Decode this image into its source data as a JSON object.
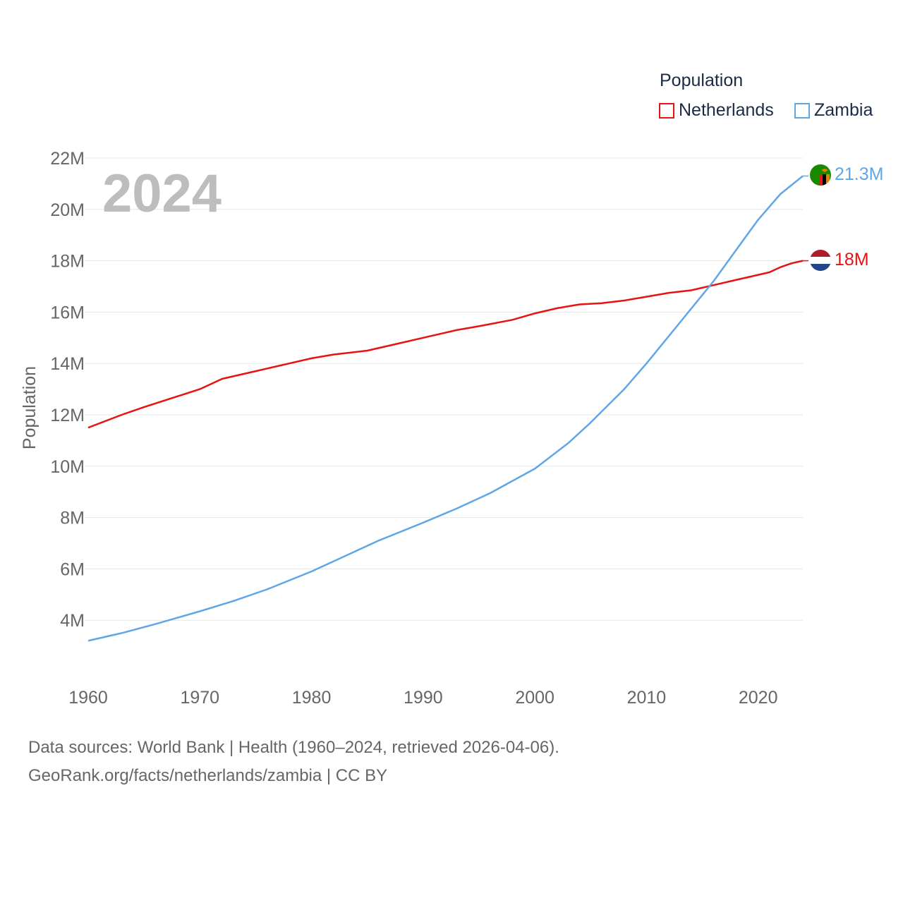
{
  "legend": {
    "title": "Population",
    "items": [
      {
        "label": "Netherlands",
        "color": "#e8130f"
      },
      {
        "label": "Zambia",
        "color": "#5fa6e6"
      }
    ]
  },
  "year_watermark": "2024",
  "source": {
    "line1": "Data sources: World Bank | Health (1960–2024, retrieved 2026-04-06).",
    "line2": "GeoRank.org/facts/netherlands/zambia | CC BY"
  },
  "chart_data": {
    "type": "line",
    "title": "Population",
    "xlabel": "",
    "ylabel": "Population",
    "xlim": [
      1960,
      2024
    ],
    "ylim": [
      2,
      22
    ],
    "x_ticks": [
      1960,
      1970,
      1980,
      1990,
      2000,
      2010,
      2020
    ],
    "y_ticks": [
      4,
      6,
      8,
      10,
      12,
      14,
      16,
      18,
      20,
      22
    ],
    "y_tick_labels": [
      "4M",
      "6M",
      "8M",
      "10M",
      "12M",
      "14M",
      "16M",
      "18M",
      "20M",
      "22M"
    ],
    "grid": true,
    "legend_position": "top-right",
    "series": [
      {
        "name": "Netherlands",
        "color": "#e8130f",
        "end_label": "18M",
        "flag": "netherlands-flag-icon",
        "points": [
          [
            1960,
            11.5
          ],
          [
            1963,
            12.0
          ],
          [
            1965,
            12.3
          ],
          [
            1970,
            13.0
          ],
          [
            1972,
            13.4
          ],
          [
            1975,
            13.7
          ],
          [
            1978,
            14.0
          ],
          [
            1980,
            14.2
          ],
          [
            1982,
            14.35
          ],
          [
            1985,
            14.5
          ],
          [
            1988,
            14.8
          ],
          [
            1990,
            15.0
          ],
          [
            1993,
            15.3
          ],
          [
            1995,
            15.45
          ],
          [
            1998,
            15.7
          ],
          [
            2000,
            15.95
          ],
          [
            2002,
            16.15
          ],
          [
            2004,
            16.3
          ],
          [
            2006,
            16.35
          ],
          [
            2008,
            16.45
          ],
          [
            2010,
            16.6
          ],
          [
            2012,
            16.75
          ],
          [
            2014,
            16.85
          ],
          [
            2016,
            17.05
          ],
          [
            2018,
            17.25
          ],
          [
            2020,
            17.45
          ],
          [
            2021,
            17.55
          ],
          [
            2022,
            17.75
          ],
          [
            2023,
            17.9
          ],
          [
            2024,
            18.0
          ]
        ]
      },
      {
        "name": "Zambia",
        "color": "#5fa6e6",
        "end_label": "21.3M",
        "flag": "zambia-flag-icon",
        "points": [
          [
            1960,
            3.2
          ],
          [
            1963,
            3.5
          ],
          [
            1966,
            3.85
          ],
          [
            1970,
            4.35
          ],
          [
            1973,
            4.75
          ],
          [
            1976,
            5.2
          ],
          [
            1980,
            5.9
          ],
          [
            1983,
            6.5
          ],
          [
            1986,
            7.1
          ],
          [
            1990,
            7.8
          ],
          [
            1993,
            8.35
          ],
          [
            1996,
            8.95
          ],
          [
            2000,
            9.9
          ],
          [
            2003,
            10.9
          ],
          [
            2005,
            11.7
          ],
          [
            2008,
            13.0
          ],
          [
            2010,
            14.0
          ],
          [
            2013,
            15.6
          ],
          [
            2016,
            17.2
          ],
          [
            2018,
            18.4
          ],
          [
            2020,
            19.6
          ],
          [
            2022,
            20.6
          ],
          [
            2024,
            21.3
          ]
        ]
      }
    ]
  }
}
